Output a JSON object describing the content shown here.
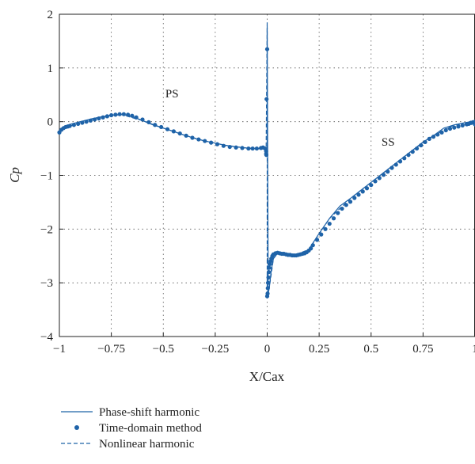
{
  "chart_data": {
    "type": "line",
    "title": "",
    "xlabel": "X/Cax",
    "ylabel": "Cp",
    "xlim": [
      -1,
      1
    ],
    "ylim": [
      -4,
      2
    ],
    "x_ticks": [
      -1,
      -0.75,
      -0.5,
      -0.25,
      0,
      0.25,
      0.5,
      0.75,
      1
    ],
    "x_tick_labels": [
      "−1",
      "−0.75",
      "−0.5",
      "−0.25",
      "0",
      "0.25",
      "0.5",
      "0.75",
      "1"
    ],
    "y_ticks": [
      -4,
      -3,
      -2,
      -1,
      0,
      1,
      2
    ],
    "y_tick_labels": [
      "−4",
      "−3",
      "−2",
      "−1",
      "0",
      "1",
      "2"
    ],
    "grid": true,
    "legend_position": "bottom-left",
    "annotations": [
      {
        "text": "PS",
        "x": -0.49,
        "y": 0.45
      },
      {
        "text": "SS",
        "x": 0.55,
        "y": -0.45
      }
    ],
    "accent_color": "#1f63a8",
    "series": [
      {
        "name": "Phase-shift harmonic",
        "style": "solid",
        "x": [
          -1,
          -0.99,
          -0.97,
          -0.95,
          -0.9,
          -0.85,
          -0.8,
          -0.75,
          -0.7,
          -0.65,
          -0.6,
          -0.55,
          -0.5,
          -0.45,
          -0.4,
          -0.35,
          -0.3,
          -0.25,
          -0.2,
          -0.15,
          -0.1,
          -0.05,
          -0.02,
          -0.005,
          -0.005,
          0,
          0,
          0.005,
          0.01,
          0.02,
          0.03,
          0.05,
          0.08,
          0.1,
          0.12,
          0.15,
          0.18,
          0.2,
          0.25,
          0.3,
          0.35,
          0.4,
          0.45,
          0.5,
          0.55,
          0.6,
          0.65,
          0.7,
          0.75,
          0.8,
          0.85,
          0.9,
          0.95,
          0.98,
          1
        ],
        "y": [
          -0.18,
          -0.12,
          -0.08,
          -0.05,
          0.0,
          0.05,
          0.09,
          0.12,
          0.13,
          0.1,
          0.02,
          -0.06,
          -0.12,
          -0.18,
          -0.25,
          -0.31,
          -0.36,
          -0.4,
          -0.44,
          -0.47,
          -0.49,
          -0.5,
          -0.5,
          -0.48,
          -0.65,
          -0.55,
          1.75,
          -3.2,
          -3.1,
          -2.75,
          -2.55,
          -2.45,
          -2.45,
          -2.47,
          -2.48,
          -2.47,
          -2.44,
          -2.38,
          -2.08,
          -1.8,
          -1.57,
          -1.43,
          -1.28,
          -1.13,
          -0.98,
          -0.83,
          -0.68,
          -0.53,
          -0.38,
          -0.26,
          -0.12,
          -0.06,
          -0.02,
          0.0,
          -0.05
        ]
      },
      {
        "name": "Time-domain method",
        "style": "markers",
        "x": [
          -1,
          -0.99,
          -0.98,
          -0.97,
          -0.96,
          -0.95,
          -0.93,
          -0.91,
          -0.89,
          -0.87,
          -0.85,
          -0.83,
          -0.81,
          -0.79,
          -0.77,
          -0.75,
          -0.73,
          -0.71,
          -0.69,
          -0.67,
          -0.65,
          -0.63,
          -0.6,
          -0.57,
          -0.54,
          -0.51,
          -0.48,
          -0.45,
          -0.42,
          -0.39,
          -0.36,
          -0.33,
          -0.3,
          -0.27,
          -0.24,
          -0.21,
          -0.18,
          -0.15,
          -0.12,
          -0.09,
          -0.07,
          -0.05,
          -0.03,
          -0.02,
          -0.01,
          -0.005,
          -0.005,
          -0.004,
          -0.003,
          0,
          0,
          0.002,
          0.003,
          0.004,
          0.006,
          0.008,
          0.01,
          0.013,
          0.016,
          0.02,
          0.025,
          0.03,
          0.04,
          0.05,
          0.06,
          0.07,
          0.08,
          0.09,
          0.1,
          0.11,
          0.12,
          0.13,
          0.14,
          0.15,
          0.16,
          0.17,
          0.18,
          0.19,
          0.2,
          0.21,
          0.22,
          0.24,
          0.26,
          0.28,
          0.3,
          0.32,
          0.34,
          0.36,
          0.38,
          0.4,
          0.42,
          0.44,
          0.46,
          0.48,
          0.5,
          0.52,
          0.54,
          0.56,
          0.58,
          0.6,
          0.62,
          0.64,
          0.66,
          0.68,
          0.7,
          0.72,
          0.74,
          0.76,
          0.78,
          0.8,
          0.82,
          0.84,
          0.86,
          0.88,
          0.9,
          0.92,
          0.94,
          0.96,
          0.97,
          0.98,
          0.99,
          1,
          1
        ],
        "y": [
          -0.2,
          -0.15,
          -0.12,
          -0.1,
          -0.09,
          -0.08,
          -0.06,
          -0.04,
          -0.02,
          0.0,
          0.02,
          0.04,
          0.06,
          0.08,
          0.1,
          0.12,
          0.13,
          0.14,
          0.14,
          0.13,
          0.11,
          0.08,
          0.04,
          -0.01,
          -0.06,
          -0.1,
          -0.14,
          -0.18,
          -0.22,
          -0.26,
          -0.3,
          -0.33,
          -0.36,
          -0.39,
          -0.42,
          -0.45,
          -0.47,
          -0.48,
          -0.49,
          -0.5,
          -0.5,
          -0.5,
          -0.49,
          -0.48,
          -0.5,
          -0.55,
          -0.6,
          -0.62,
          0.42,
          1.35,
          -3.25,
          -3.2,
          -3.1,
          -3.0,
          -2.9,
          -2.8,
          -2.72,
          -2.65,
          -2.6,
          -2.55,
          -2.5,
          -2.47,
          -2.45,
          -2.44,
          -2.45,
          -2.46,
          -2.46,
          -2.47,
          -2.48,
          -2.48,
          -2.49,
          -2.49,
          -2.49,
          -2.48,
          -2.47,
          -2.46,
          -2.45,
          -2.43,
          -2.4,
          -2.36,
          -2.3,
          -2.2,
          -2.1,
          -2.0,
          -1.9,
          -1.8,
          -1.7,
          -1.62,
          -1.55,
          -1.49,
          -1.42,
          -1.36,
          -1.3,
          -1.24,
          -1.18,
          -1.11,
          -1.05,
          -0.99,
          -0.93,
          -0.86,
          -0.8,
          -0.74,
          -0.68,
          -0.62,
          -0.56,
          -0.5,
          -0.44,
          -0.38,
          -0.32,
          -0.28,
          -0.24,
          -0.2,
          -0.16,
          -0.13,
          -0.11,
          -0.09,
          -0.07,
          -0.05,
          -0.04,
          -0.02,
          -0.01,
          0.0,
          -0.05
        ]
      },
      {
        "name": "Nonlinear harmonic",
        "style": "dashed",
        "x": [
          -1,
          -0.9,
          -0.8,
          -0.7,
          -0.6,
          -0.5,
          -0.4,
          -0.3,
          -0.2,
          -0.1,
          -0.02,
          -0.005,
          0,
          0,
          0.01,
          0.03,
          0.05,
          0.1,
          0.15,
          0.2,
          0.3,
          0.4,
          0.5,
          0.6,
          0.7,
          0.8,
          0.9,
          1
        ],
        "y": [
          -0.17,
          0.0,
          0.09,
          0.13,
          0.02,
          -0.12,
          -0.25,
          -0.36,
          -0.44,
          -0.49,
          -0.5,
          -0.48,
          1.85,
          -3.2,
          -3.1,
          -2.55,
          -2.45,
          -2.47,
          -2.46,
          -2.38,
          -1.8,
          -1.43,
          -1.13,
          -0.83,
          -0.53,
          -0.26,
          -0.06,
          -0.05
        ]
      }
    ]
  }
}
